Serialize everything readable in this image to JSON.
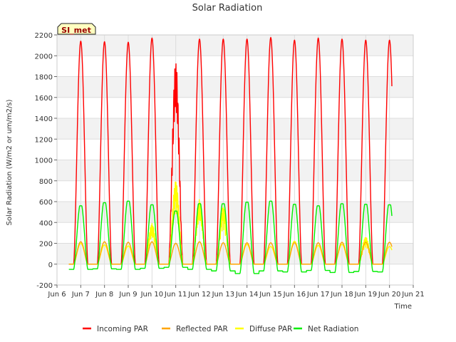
{
  "chart_data": {
    "type": "line",
    "title": "Solar Radiation",
    "xlabel": "Time",
    "ylabel": "Solar Radiation (W/m2 or um/m2/s)",
    "station_label": "SI_met",
    "xlim": [
      6,
      21
    ],
    "ylim": [
      -200,
      2200
    ],
    "x_ticks": [
      6,
      7,
      8,
      9,
      10,
      11,
      12,
      13,
      14,
      15,
      16,
      17,
      18,
      19,
      20,
      21
    ],
    "x_tick_labels": [
      "Jun 6",
      "Jun 7",
      "Jun 8",
      "Jun 9",
      "Jun 10",
      "Jun 11",
      "Jun 12",
      "Jun 13",
      "Jun 14",
      "Jun 15",
      "Jun 16",
      "Jun 17",
      "Jun 18",
      "Jun 19",
      "Jun 20",
      "Jun 21"
    ],
    "y_ticks": [
      -200,
      0,
      200,
      400,
      600,
      800,
      1000,
      1200,
      1400,
      1600,
      1800,
      2000,
      2200
    ],
    "y_tick_labels": [
      "-200",
      "0",
      "200",
      "400",
      "600",
      "800",
      "1000",
      "1200",
      "1400",
      "1600",
      "1800",
      "2000",
      "2200"
    ],
    "grid": true,
    "legend_position": "bottom",
    "x_start": 6.5,
    "day_peaks": {
      "day": [
        7,
        8,
        9,
        10,
        11,
        12,
        13,
        14,
        15,
        16,
        17,
        18,
        19,
        20
      ],
      "incoming_par": [
        2140,
        2135,
        2130,
        2170,
        1950,
        2160,
        2160,
        2160,
        2175,
        2150,
        2170,
        2160,
        2150,
        2150
      ],
      "reflected_par": [
        215,
        215,
        210,
        215,
        200,
        215,
        205,
        205,
        205,
        205,
        205,
        210,
        210,
        210
      ],
      "diffuse_par": [
        200,
        185,
        175,
        390,
        800,
        620,
        550,
        190,
        170,
        220,
        180,
        190,
        260,
        170
      ],
      "net_radiation": [
        560,
        590,
        605,
        570,
        510,
        580,
        580,
        595,
        605,
        575,
        560,
        580,
        575,
        570
      ],
      "night_net": [
        -50,
        -45,
        -50,
        -40,
        -30,
        -50,
        -65,
        -90,
        -65,
        -75,
        -60,
        -80,
        -70,
        -75
      ]
    },
    "series": [
      {
        "name": "Incoming PAR",
        "color": "#ff0000"
      },
      {
        "name": "Reflected PAR",
        "color": "#ffa500"
      },
      {
        "name": "Diffuse PAR",
        "color": "#ffff00"
      },
      {
        "name": "Net Radiation",
        "color": "#00ee00"
      }
    ]
  }
}
